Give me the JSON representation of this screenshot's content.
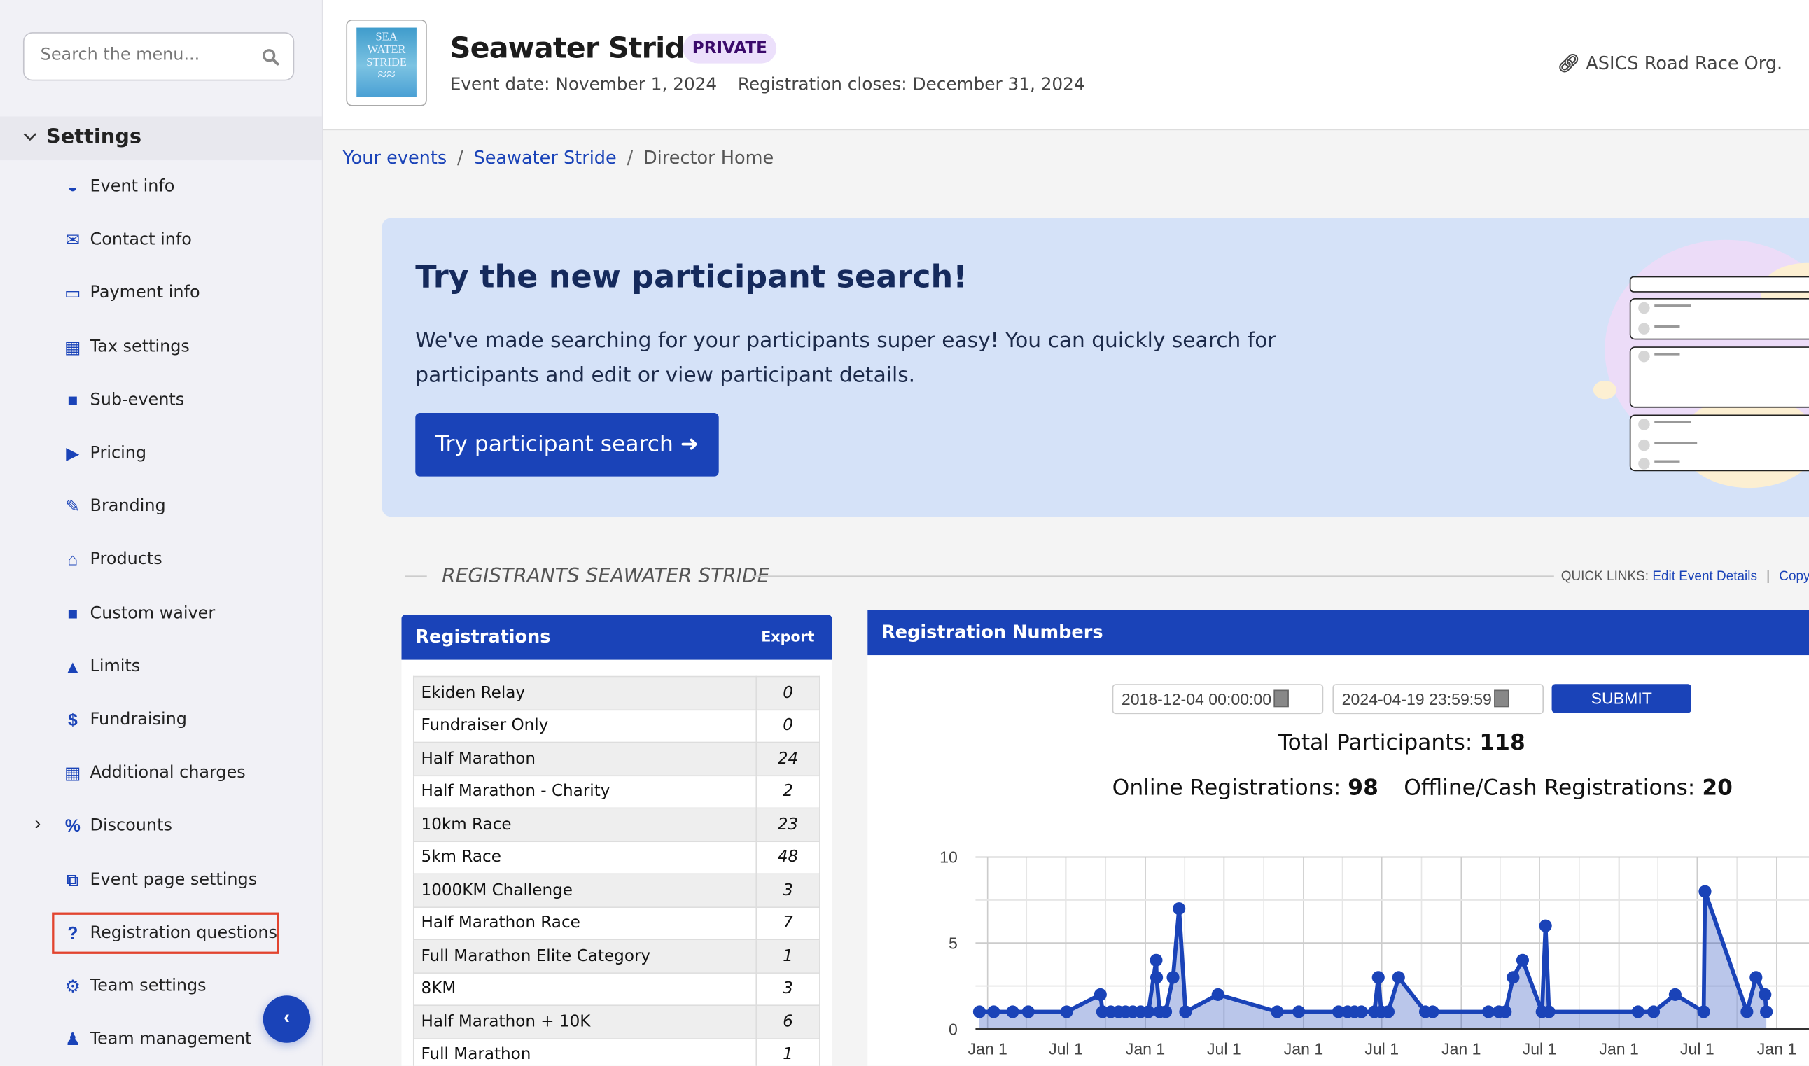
{
  "sidebar": {
    "search_placeholder": "Search the menu...",
    "section": "Settings",
    "items": [
      {
        "label": "Event info",
        "icon": "gauge-icon"
      },
      {
        "label": "Contact info",
        "icon": "envelope-icon"
      },
      {
        "label": "Payment info",
        "icon": "credit-card-icon"
      },
      {
        "label": "Tax settings",
        "icon": "calculator-icon"
      },
      {
        "label": "Sub-events",
        "icon": "clipboard-icon"
      },
      {
        "label": "Pricing",
        "icon": "tags-icon"
      },
      {
        "label": "Branding",
        "icon": "eyedropper-icon"
      },
      {
        "label": "Products",
        "icon": "basket-icon"
      },
      {
        "label": "Custom waiver",
        "icon": "file-icon"
      },
      {
        "label": "Limits",
        "icon": "warning-icon"
      },
      {
        "label": "Fundraising",
        "icon": "dollar-icon"
      },
      {
        "label": "Additional charges",
        "icon": "calculator-icon"
      },
      {
        "label": "Discounts",
        "icon": "percent-icon"
      },
      {
        "label": "Event page settings",
        "icon": "copy-icon"
      },
      {
        "label": "Registration questions",
        "icon": "question-icon"
      },
      {
        "label": "Team settings",
        "icon": "users-cog-icon"
      },
      {
        "label": "Team management",
        "icon": "users-icon"
      }
    ],
    "highlight_color": "#e2442f"
  },
  "header": {
    "title": "Seawater Stride",
    "badge": "PRIVATE",
    "event_date": "Event date: November 1, 2024",
    "registration_closes": "Registration closes: December 31, 2024",
    "org": "ASICS Road Race Org.",
    "logo_text": "SEA WATER STRIDE"
  },
  "breadcrumb": [
    "Your events",
    "Seawater Stride",
    "Director Home"
  ],
  "banner": {
    "heading": "Try the new participant search!",
    "text": "We've made searching for your participants super easy! You can quickly search for participants and edit or view participant details.",
    "button": "Try participant search"
  },
  "section": {
    "title": "REGISTRANTS SEAWATER STRIDE",
    "quick_links_label": "QUICK LINKS:",
    "quick_link_1": "Edit Event Details",
    "quick_link_2": "Copy"
  },
  "registrations": {
    "title": "Registrations",
    "export": "Export",
    "rows": [
      {
        "name": "Ekiden Relay",
        "count": "0"
      },
      {
        "name": "Fundraiser Only",
        "count": "0"
      },
      {
        "name": "Half Marathon",
        "count": "24"
      },
      {
        "name": "Half Marathon - Charity",
        "count": "2"
      },
      {
        "name": "10km Race",
        "count": "23"
      },
      {
        "name": "5km Race",
        "count": "48"
      },
      {
        "name": "1000KM Challenge",
        "count": "3"
      },
      {
        "name": "Half Marathon Race",
        "count": "7"
      },
      {
        "name": "Full Marathon Elite Category",
        "count": "1"
      },
      {
        "name": "8KM",
        "count": "3"
      },
      {
        "name": "Half Marathon + 10K",
        "count": "6"
      },
      {
        "name": "Full Marathon",
        "count": "1"
      }
    ]
  },
  "numbers": {
    "title": "Registration Numbers",
    "start": "2018-12-04 00:00:00",
    "end": "2024-04-19 23:59:59",
    "submit": "SUBMIT",
    "total_label": "Total Participants:",
    "total": "118",
    "online_label": "Online Registrations:",
    "online": "98",
    "offline_label": "Offline/Cash Registrations:",
    "offline": "20"
  },
  "chart_data": {
    "type": "area",
    "xlim": [
      "2018-12-04",
      "2024-04-19"
    ],
    "ylim": [
      0,
      10
    ],
    "yticks": [
      "0",
      "5",
      "10"
    ],
    "xticks": [
      {
        "date": "2019-01-01",
        "label": "Jan 1"
      },
      {
        "date": "2019-07-01",
        "label": "Jul 1"
      },
      {
        "date": "2020-01-01",
        "label": "Jan 1"
      },
      {
        "date": "2020-07-01",
        "label": "Jul 1"
      },
      {
        "date": "2021-01-01",
        "label": "Jan 1"
      },
      {
        "date": "2021-07-01",
        "label": "Jul 1"
      },
      {
        "date": "2022-01-01",
        "label": "Jan 1"
      },
      {
        "date": "2022-07-01",
        "label": "Jul 1"
      },
      {
        "date": "2023-01-01",
        "label": "Jan 1"
      },
      {
        "date": "2023-07-01",
        "label": "Jul 1"
      },
      {
        "date": "2024-01-01",
        "label": "Jan 1"
      }
    ],
    "grid": true,
    "color": "#1a43b8",
    "points": [
      [
        "2018-12-13",
        1
      ],
      [
        "2019-01-15",
        1
      ],
      [
        "2019-02-28",
        1
      ],
      [
        "2019-04-05",
        1
      ],
      [
        "2019-07-03",
        1
      ],
      [
        "2019-09-19",
        2
      ],
      [
        "2019-09-24",
        1
      ],
      [
        "2019-10-13",
        1
      ],
      [
        "2019-10-31",
        1
      ],
      [
        "2019-11-16",
        1
      ],
      [
        "2019-12-03",
        1
      ],
      [
        "2019-12-21",
        1
      ],
      [
        "2020-01-08",
        1
      ],
      [
        "2020-01-26",
        4
      ],
      [
        "2020-01-27",
        3
      ],
      [
        "2020-02-03",
        1
      ],
      [
        "2020-02-17",
        1
      ],
      [
        "2020-03-05",
        3
      ],
      [
        "2020-03-19",
        7
      ],
      [
        "2020-04-03",
        1
      ],
      [
        "2020-06-17",
        2
      ],
      [
        "2020-11-01",
        1
      ],
      [
        "2020-12-21",
        1
      ],
      [
        "2021-03-23",
        1
      ],
      [
        "2021-04-13",
        1
      ],
      [
        "2021-04-29",
        1
      ],
      [
        "2021-05-15",
        1
      ],
      [
        "2021-06-14",
        1
      ],
      [
        "2021-06-23",
        3
      ],
      [
        "2021-06-30",
        1
      ],
      [
        "2021-07-16",
        1
      ],
      [
        "2021-08-09",
        3
      ],
      [
        "2021-10-10",
        1
      ],
      [
        "2021-10-27",
        1
      ],
      [
        "2022-03-05",
        1
      ],
      [
        "2022-03-29",
        1
      ],
      [
        "2022-04-13",
        1
      ],
      [
        "2022-05-01",
        3
      ],
      [
        "2022-05-23",
        4
      ],
      [
        "2022-07-07",
        1
      ],
      [
        "2022-07-15",
        6
      ],
      [
        "2022-07-23",
        1
      ],
      [
        "2023-02-14",
        1
      ],
      [
        "2023-03-22",
        1
      ],
      [
        "2023-05-11",
        2
      ],
      [
        "2023-07-16",
        1
      ],
      [
        "2023-07-19",
        8
      ],
      [
        "2023-10-24",
        1
      ],
      [
        "2023-11-14",
        3
      ],
      [
        "2023-12-05",
        2
      ],
      [
        "2023-12-08",
        1
      ]
    ]
  }
}
